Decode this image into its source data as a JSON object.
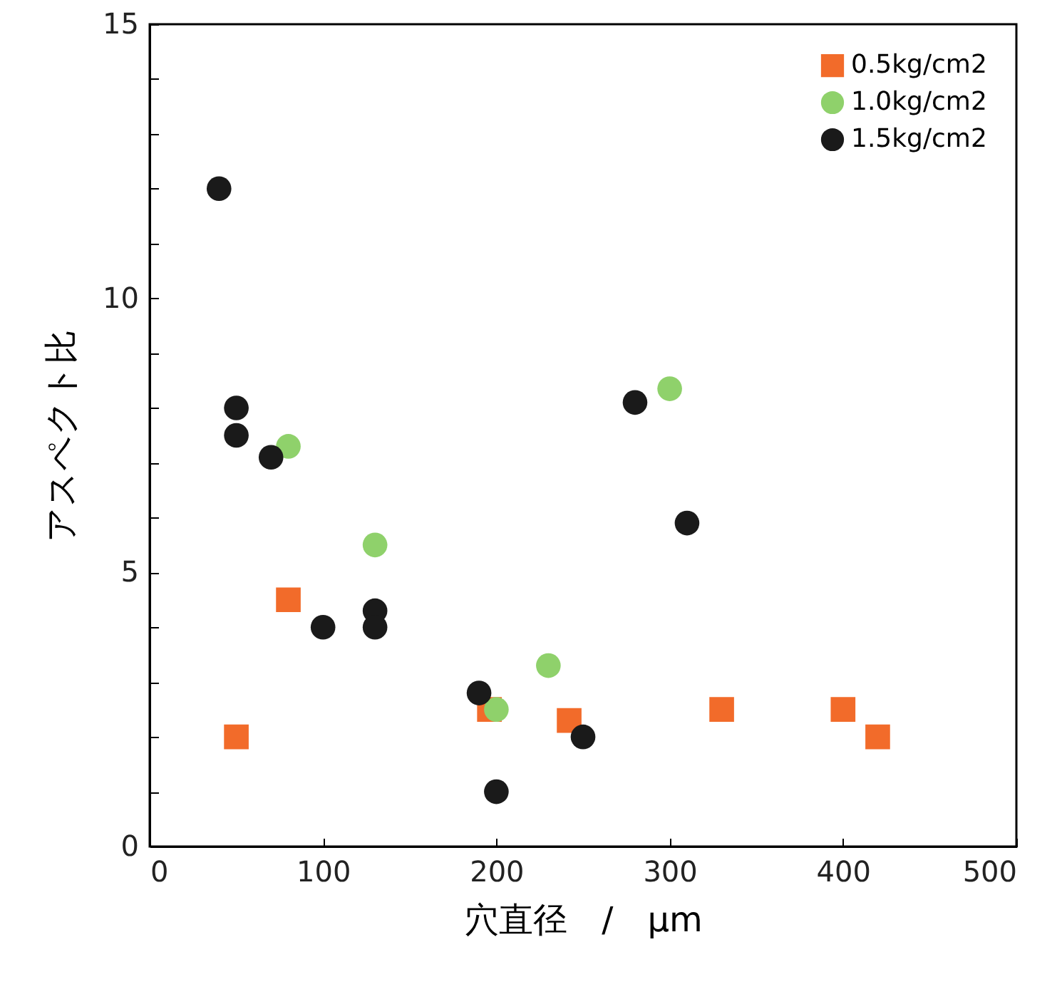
{
  "chart_data": {
    "type": "scatter",
    "xlabel": "穴直径　/　μm",
    "ylabel": "アスペクト比",
    "xlim": [
      0,
      500
    ],
    "ylim": [
      0,
      15
    ],
    "xticks": [
      0,
      100,
      200,
      300,
      400,
      500
    ],
    "yticks": [
      0,
      {
        "value": 1,
        "label": null
      },
      {
        "value": 2,
        "label": null
      },
      {
        "value": 3,
        "label": null
      },
      {
        "value": 4,
        "label": null
      },
      5,
      {
        "value": 6,
        "label": null
      },
      {
        "value": 7,
        "label": null
      },
      {
        "value": 8,
        "label": null
      },
      {
        "value": 9,
        "label": null
      },
      10,
      {
        "value": 11,
        "label": null
      },
      {
        "value": 12,
        "label": null
      },
      {
        "value": 13,
        "label": null
      },
      {
        "value": 14,
        "label": null
      },
      15
    ],
    "grid": false,
    "legend": "top right",
    "series": [
      {
        "name": "0.5kg/cm2",
        "color": "#f26b2a",
        "marker": "square",
        "x": [
          50,
          80,
          196,
          242,
          330,
          400,
          420
        ],
        "values": [
          2.0,
          4.5,
          2.5,
          2.3,
          2.5,
          2.5,
          2.0
        ]
      },
      {
        "name": "1.0kg/cm2",
        "color": "#8fd16b",
        "marker": "circle",
        "x": [
          80,
          130,
          200,
          230,
          300
        ],
        "values": [
          7.3,
          5.5,
          2.5,
          3.3,
          8.35
        ]
      },
      {
        "name": "1.5kg/cm2",
        "color": "#1a1a1a",
        "marker": "circle",
        "x": [
          40,
          50,
          50,
          70,
          100,
          130,
          130,
          190,
          200,
          250,
          280,
          310
        ],
        "values": [
          12.0,
          8.0,
          7.5,
          7.1,
          4.0,
          4.3,
          4.0,
          2.8,
          1.0,
          2.0,
          8.1,
          5.9
        ]
      }
    ]
  }
}
